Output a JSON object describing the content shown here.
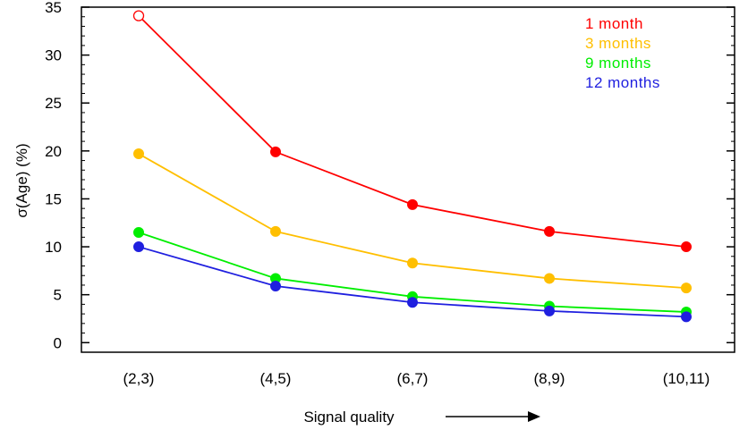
{
  "chart_data": {
    "type": "line",
    "title": "",
    "xlabel": "Signal quality",
    "ylabel": "σ(Age) (%)",
    "categories": [
      "(2,3)",
      "(4,5)",
      "(6,7)",
      "(8,9)",
      "(10,11)"
    ],
    "ylim": [
      -1,
      35
    ],
    "yticks": [
      0,
      5,
      10,
      15,
      20,
      25,
      30,
      35
    ],
    "grid": false,
    "legend_position": "top-right",
    "series": [
      {
        "name": "1 month",
        "color": "#ff0000",
        "values": [
          34.1,
          19.9,
          14.4,
          11.6,
          10.0
        ],
        "open_markers": [
          0
        ]
      },
      {
        "name": "3 months",
        "color": "#ffbf00",
        "values": [
          19.7,
          11.6,
          8.3,
          6.7,
          5.7
        ],
        "open_markers": []
      },
      {
        "name": "9 months",
        "color": "#00ee00",
        "values": [
          11.5,
          6.7,
          4.8,
          3.8,
          3.2
        ],
        "open_markers": []
      },
      {
        "name": "12 months",
        "color": "#1f1fdf",
        "values": [
          10.0,
          5.9,
          4.2,
          3.3,
          2.7
        ],
        "open_markers": []
      }
    ]
  }
}
